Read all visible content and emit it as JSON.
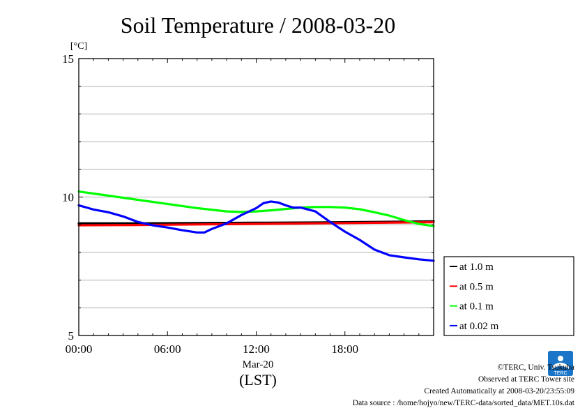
{
  "chart_data": {
    "type": "line",
    "title": "Soil Temperature / 2008-03-20",
    "ylabel": "[°C]",
    "xlabel_date": "Mar-20",
    "xlabel_units": "(LST)",
    "ylim": [
      5,
      15
    ],
    "xlim": [
      0,
      24
    ],
    "y_ticks": [
      {
        "value": 5,
        "label": "5"
      },
      {
        "value": 10,
        "label": "10"
      },
      {
        "value": 15,
        "label": "15"
      }
    ],
    "x_ticks": [
      {
        "value": 0,
        "label": "00:00"
      },
      {
        "value": 6,
        "label": "06:00"
      },
      {
        "value": 12,
        "label": "12:00"
      },
      {
        "value": 18,
        "label": "18:00"
      }
    ],
    "grid": true,
    "legend_position": "right, below plot center",
    "series": [
      {
        "name": "at 1.0 m",
        "color": "#000000",
        "x": [
          0,
          4,
          8,
          12,
          16,
          20,
          24
        ],
        "y": [
          9.05,
          9.05,
          9.06,
          9.07,
          9.08,
          9.1,
          9.12
        ]
      },
      {
        "name": "at 0.5 m",
        "color": "#ff0000",
        "x": [
          0,
          4,
          8,
          12,
          16,
          20,
          24
        ],
        "y": [
          8.98,
          8.99,
          9.01,
          9.03,
          9.05,
          9.07,
          9.09
        ]
      },
      {
        "name": "at 0.1 m",
        "color": "#00ff00",
        "x": [
          0,
          2,
          4,
          6,
          8,
          10,
          11,
          12,
          13,
          14,
          15,
          16,
          17,
          18,
          19,
          20,
          21,
          22,
          23,
          24
        ],
        "y": [
          10.2,
          10.05,
          9.9,
          9.75,
          9.6,
          9.48,
          9.46,
          9.48,
          9.52,
          9.57,
          9.62,
          9.64,
          9.64,
          9.62,
          9.56,
          9.45,
          9.33,
          9.17,
          9.03,
          8.95
        ]
      },
      {
        "name": "at 0.02 m",
        "color": "#0000ff",
        "x": [
          0,
          1,
          2,
          3,
          4,
          5,
          6,
          7,
          8,
          8.5,
          9,
          10,
          11,
          12,
          12.5,
          13,
          13.5,
          14,
          14.5,
          15,
          16,
          17,
          18,
          19,
          20,
          21,
          22,
          23,
          24
        ],
        "y": [
          9.7,
          9.55,
          9.45,
          9.3,
          9.1,
          8.98,
          8.9,
          8.8,
          8.72,
          8.72,
          8.85,
          9.05,
          9.35,
          9.6,
          9.78,
          9.84,
          9.8,
          9.7,
          9.62,
          9.62,
          9.48,
          9.1,
          8.75,
          8.45,
          8.1,
          7.9,
          7.82,
          7.75,
          7.7
        ]
      }
    ]
  },
  "footer": {
    "copyright": "©TERC, Univ. Tsukuba",
    "observed": "Observed at TERC Tower site",
    "created": "Created Automatically at 2008-03-20/23:55:09",
    "source": "Data source : /home/hojyo/new/TERC-data/sorted_data/MET.10s.dat"
  },
  "logo": {
    "text": "TERC",
    "color": "#1a75c9"
  }
}
